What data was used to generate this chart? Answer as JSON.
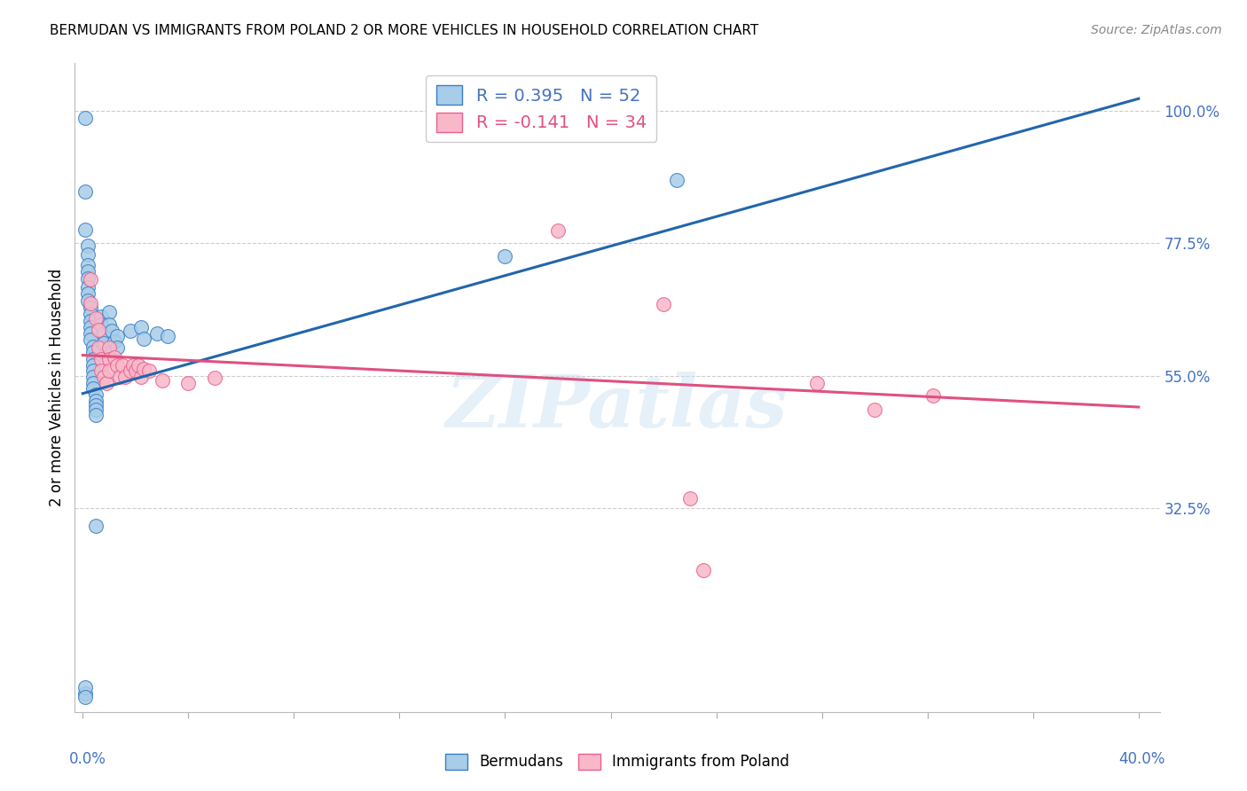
{
  "title": "BERMUDAN VS IMMIGRANTS FROM POLAND 2 OR MORE VEHICLES IN HOUSEHOLD CORRELATION CHART",
  "source": "Source: ZipAtlas.com",
  "ylabel": "2 or more Vehicles in Household",
  "ytick_labels": [
    "100.0%",
    "77.5%",
    "55.0%",
    "32.5%"
  ],
  "ytick_values": [
    1.0,
    0.775,
    0.55,
    0.325
  ],
  "legend_blue": "R = 0.395   N = 52",
  "legend_pink": "R = -0.141   N = 34",
  "watermark": "ZIPatlas",
  "blue_color": "#a8cde8",
  "pink_color": "#f9b8c8",
  "blue_edge_color": "#3a7ec6",
  "pink_edge_color": "#e86090",
  "blue_line_color": "#2166ac",
  "pink_line_color": "#e05080",
  "blue_scatter": [
    [
      0.001,
      0.987
    ],
    [
      0.001,
      0.862
    ],
    [
      0.001,
      0.798
    ],
    [
      0.002,
      0.77
    ],
    [
      0.002,
      0.755
    ],
    [
      0.002,
      0.738
    ],
    [
      0.002,
      0.727
    ],
    [
      0.002,
      0.715
    ],
    [
      0.002,
      0.7
    ],
    [
      0.002,
      0.69
    ],
    [
      0.002,
      0.678
    ],
    [
      0.003,
      0.665
    ],
    [
      0.003,
      0.655
    ],
    [
      0.003,
      0.643
    ],
    [
      0.003,
      0.633
    ],
    [
      0.003,
      0.622
    ],
    [
      0.003,
      0.612
    ],
    [
      0.004,
      0.6
    ],
    [
      0.004,
      0.59
    ],
    [
      0.004,
      0.578
    ],
    [
      0.004,
      0.568
    ],
    [
      0.004,
      0.558
    ],
    [
      0.004,
      0.548
    ],
    [
      0.004,
      0.538
    ],
    [
      0.004,
      0.528
    ],
    [
      0.005,
      0.518
    ],
    [
      0.005,
      0.508
    ],
    [
      0.005,
      0.5
    ],
    [
      0.005,
      0.492
    ],
    [
      0.005,
      0.483
    ],
    [
      0.005,
      0.295
    ],
    [
      0.007,
      0.65
    ],
    [
      0.007,
      0.637
    ],
    [
      0.008,
      0.622
    ],
    [
      0.008,
      0.605
    ],
    [
      0.009,
      0.588
    ],
    [
      0.01,
      0.658
    ],
    [
      0.01,
      0.637
    ],
    [
      0.011,
      0.627
    ],
    [
      0.012,
      0.608
    ],
    [
      0.013,
      0.617
    ],
    [
      0.013,
      0.598
    ],
    [
      0.018,
      0.627
    ],
    [
      0.022,
      0.632
    ],
    [
      0.023,
      0.613
    ],
    [
      0.028,
      0.622
    ],
    [
      0.032,
      0.617
    ],
    [
      0.16,
      0.752
    ],
    [
      0.225,
      0.882
    ],
    [
      0.001,
      0.012
    ],
    [
      0.001,
      0.022
    ],
    [
      0.001,
      0.005
    ]
  ],
  "pink_scatter": [
    [
      0.003,
      0.713
    ],
    [
      0.003,
      0.673
    ],
    [
      0.005,
      0.648
    ],
    [
      0.006,
      0.628
    ],
    [
      0.006,
      0.598
    ],
    [
      0.007,
      0.578
    ],
    [
      0.007,
      0.558
    ],
    [
      0.008,
      0.548
    ],
    [
      0.009,
      0.538
    ],
    [
      0.01,
      0.598
    ],
    [
      0.01,
      0.578
    ],
    [
      0.01,
      0.558
    ],
    [
      0.012,
      0.582
    ],
    [
      0.013,
      0.568
    ],
    [
      0.014,
      0.548
    ],
    [
      0.015,
      0.568
    ],
    [
      0.016,
      0.548
    ],
    [
      0.018,
      0.558
    ],
    [
      0.019,
      0.568
    ],
    [
      0.02,
      0.558
    ],
    [
      0.021,
      0.568
    ],
    [
      0.022,
      0.548
    ],
    [
      0.023,
      0.562
    ],
    [
      0.025,
      0.558
    ],
    [
      0.03,
      0.542
    ],
    [
      0.04,
      0.537
    ],
    [
      0.05,
      0.547
    ],
    [
      0.18,
      0.797
    ],
    [
      0.22,
      0.672
    ],
    [
      0.278,
      0.537
    ],
    [
      0.3,
      0.492
    ],
    [
      0.322,
      0.517
    ],
    [
      0.23,
      0.342
    ],
    [
      0.235,
      0.22
    ]
  ],
  "blue_line_x": [
    0.0,
    0.4
  ],
  "blue_line_y": [
    0.52,
    1.02
  ],
  "pink_line_x": [
    0.0,
    0.4
  ],
  "pink_line_y": [
    0.585,
    0.497
  ],
  "xlim": [
    -0.003,
    0.408
  ],
  "ylim": [
    -0.02,
    1.08
  ],
  "xtick_positions": [
    0.0,
    0.04,
    0.08,
    0.12,
    0.16,
    0.2,
    0.24,
    0.28,
    0.32,
    0.36,
    0.4
  ]
}
